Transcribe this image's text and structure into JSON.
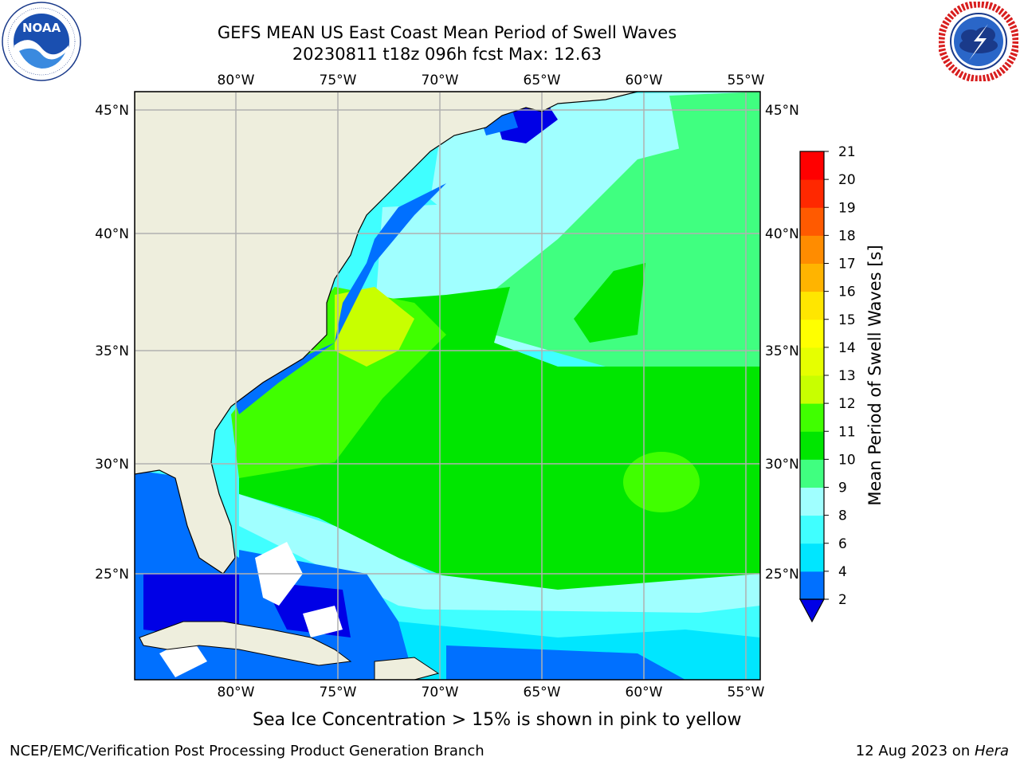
{
  "header": {
    "title_line1": "GEFS MEAN US East Coast Mean Period of Swell Waves",
    "title_line2": "20230811 t18z 096h fcst   Max: 12.63"
  },
  "logos": {
    "left": {
      "icon": "noaa-logo",
      "text": "NOAA",
      "ring_text": "NATIONAL OCEANIC AND ATMOSPHERIC ADMINISTRATION · U.S. DEPARTMENT OF COMMERCE"
    },
    "right": {
      "icon": "nws-logo",
      "ring_text": "NATIONAL WEATHER SERVICE"
    }
  },
  "map": {
    "lon_labels": [
      "80°W",
      "75°W",
      "70°W",
      "65°W",
      "60°W",
      "55°W"
    ],
    "lat_labels": [
      "45°N",
      "40°N",
      "35°N",
      "30°N",
      "25°N"
    ],
    "colors": {
      "land": "#eeeedd",
      "grid": "#b0b0b0",
      "coast": "#000000"
    }
  },
  "colorbar": {
    "label": "Mean Period of Swell Waves [s]",
    "ticks": [
      "2",
      "4",
      "6",
      "8",
      "9",
      "10",
      "11",
      "12",
      "13",
      "14",
      "15",
      "16",
      "17",
      "18",
      "19",
      "20",
      "21"
    ],
    "colors": [
      "#0070ff",
      "#00e6ff",
      "#40ffff",
      "#a0ffff",
      "#40ff80",
      "#00e600",
      "#40ff00",
      "#c8ff00",
      "#e6ff00",
      "#ffff00",
      "#ffe600",
      "#ffb400",
      "#ff8c00",
      "#ff5a00",
      "#ff2800",
      "#ff0000"
    ],
    "extend_color": "#0000e6"
  },
  "caption": "Sea Ice Concentration > 15% is shown in pink to yellow",
  "footer": {
    "left": "NCEP/EMC/Verification Post Processing Product Generation Branch",
    "date": "12 Aug 2023 on ",
    "machine": "Hera"
  }
}
